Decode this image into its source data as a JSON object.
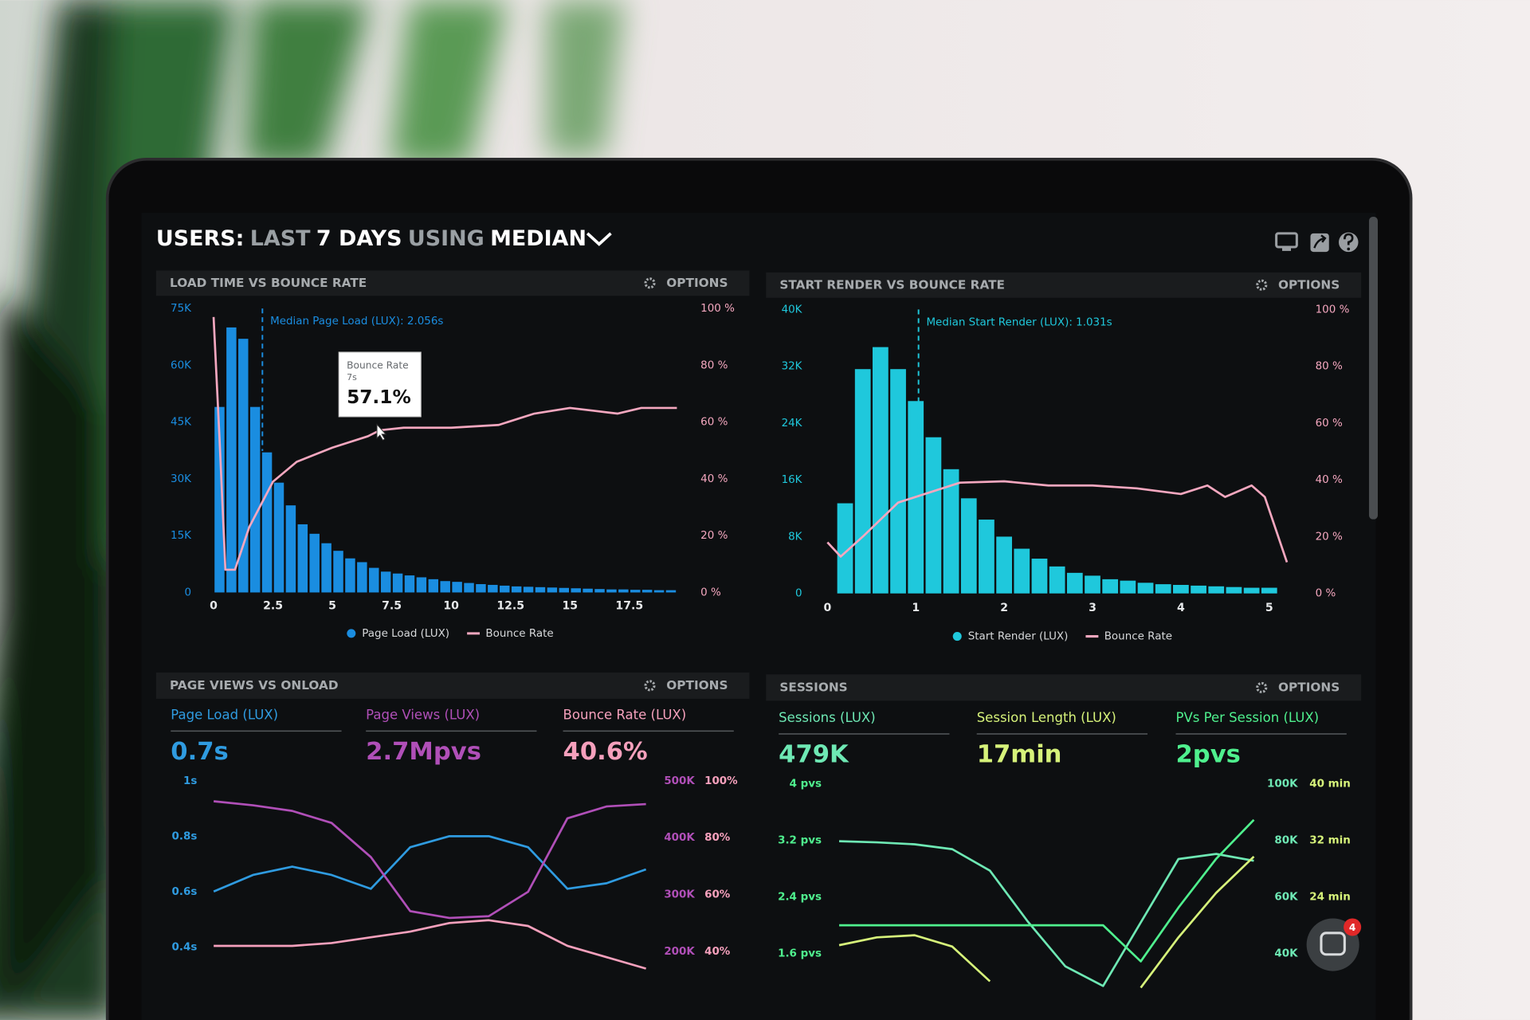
{
  "header": {
    "title": [
      "USERS:",
      "LAST",
      "7 DAYS",
      "USING",
      "MEDIAN"
    ]
  },
  "chat_badge": "4",
  "chart_data": [
    {
      "type": "histogram",
      "title": "LOAD TIME VS BOUNCE RATE",
      "options": "OPTIONS",
      "bins": [
        0,
        0.5,
        1,
        1.5,
        2,
        2.5,
        3,
        3.5,
        4,
        4.5,
        5,
        5.5,
        6,
        6.5,
        7,
        7.5,
        8,
        8.5,
        9,
        9.5,
        10,
        10.5,
        11,
        11.5,
        12,
        12.5,
        13,
        13.5,
        14,
        14.5,
        15,
        15.5,
        16,
        16.5,
        17,
        17.5,
        18,
        18.5,
        19,
        19.5
      ],
      "series": [
        {
          "name": "Page Load (LUX)",
          "color": "#1a8de0",
          "values": [
            49000,
            70000,
            67000,
            49000,
            37000,
            29000,
            23000,
            18000,
            15500,
            13000,
            11000,
            9000,
            8000,
            6500,
            5500,
            5000,
            4500,
            4000,
            3500,
            3000,
            2800,
            2500,
            2200,
            2000,
            1800,
            1600,
            1500,
            1400,
            1300,
            1200,
            1100,
            1000,
            900,
            800,
            800,
            700,
            700,
            600,
            600
          ]
        },
        {
          "name": "Bounce Rate",
          "color": "#f4a7bf",
          "axis": "y2",
          "x": [
            0,
            0.25,
            0.5,
            0.9,
            1.5,
            2.5,
            3.5,
            5,
            6.5,
            7,
            8,
            10,
            12,
            13.5,
            15,
            16,
            17,
            18,
            19.5
          ],
          "values": [
            97,
            54,
            8,
            8,
            23,
            39,
            46,
            51,
            55,
            57.1,
            58,
            58,
            59,
            63,
            65,
            64,
            63,
            65,
            65
          ]
        }
      ],
      "xlim": [
        -0.2,
        19.8
      ],
      "xticks": [
        0,
        2.5,
        5,
        7.5,
        10,
        12.5,
        15,
        17.5
      ],
      "ylim": [
        0,
        75000
      ],
      "yticks": [
        0,
        {
          "value": 15000,
          "label": "15K"
        },
        {
          "value": 30000,
          "label": "30K"
        },
        {
          "value": 45000,
          "label": "45K"
        },
        {
          "value": 60000,
          "label": "60K"
        },
        {
          "value": 75000,
          "label": "75K"
        }
      ],
      "y2lim": [
        0,
        100
      ],
      "y2ticks": [
        {
          "value": 0,
          "label": "0 %"
        },
        {
          "value": 20,
          "label": "20 %"
        },
        {
          "value": 40,
          "label": "40 %"
        },
        {
          "value": 60,
          "label": "60 %"
        },
        {
          "value": 80,
          "label": "80 %"
        },
        {
          "value": 100,
          "label": "100 %"
        }
      ],
      "annotation": {
        "text": "Median Page Load (LUX): 2.056s",
        "x": 2.056
      },
      "tooltip": {
        "title": "Bounce Rate",
        "x": 7,
        "x_label": "7s",
        "value": 57.1,
        "value_label": "57.1%"
      }
    },
    {
      "type": "histogram",
      "title": "START RENDER VS BOUNCE RATE",
      "options": "OPTIONS",
      "bins": [
        0.1,
        0.3,
        0.5,
        0.7,
        0.9,
        1.1,
        1.3,
        1.5,
        1.7,
        1.9,
        2.1,
        2.3,
        2.5,
        2.7,
        2.9,
        3.1,
        3.3,
        3.5,
        3.7,
        3.9,
        4.1,
        4.3,
        4.5,
        4.7,
        4.9,
        5.1
      ],
      "series": [
        {
          "name": "Start Render (LUX)",
          "color": "#1fc8dc",
          "values": [
            12700,
            31600,
            34700,
            31600,
            27100,
            22000,
            17500,
            13400,
            10400,
            8000,
            6300,
            4900,
            3800,
            2900,
            2500,
            2000,
            1800,
            1500,
            1300,
            1200,
            1100,
            1000,
            900,
            800,
            800
          ]
        },
        {
          "name": "Bounce Rate",
          "color": "#f4a7bf",
          "axis": "y2",
          "x": [
            0,
            0.15,
            0.4,
            0.8,
            1.1,
            1.5,
            2,
            2.5,
            3,
            3.5,
            4,
            4.3,
            4.5,
            4.8,
            4.95,
            5.2
          ],
          "values": [
            18,
            13,
            20,
            32,
            35,
            39,
            39.5,
            38,
            38,
            37,
            35,
            38,
            34,
            38,
            34,
            11
          ]
        }
      ],
      "xlim": [
        -0.5,
        5.4
      ],
      "xticks": [
        0,
        1,
        2,
        3,
        4,
        5
      ],
      "ylim": [
        0,
        40000
      ],
      "yticks": [
        0,
        {
          "value": 8000,
          "label": "8K"
        },
        {
          "value": 16000,
          "label": "16K"
        },
        {
          "value": 24000,
          "label": "24K"
        },
        {
          "value": 32000,
          "label": "32K"
        },
        {
          "value": 40000,
          "label": "40K"
        }
      ],
      "y2lim": [
        0,
        100
      ],
      "y2ticks": [
        {
          "value": 0,
          "label": "0 %"
        },
        {
          "value": 20,
          "label": "20 %"
        },
        {
          "value": 40,
          "label": "40 %"
        },
        {
          "value": 60,
          "label": "60 %"
        },
        {
          "value": 80,
          "label": "80 %"
        },
        {
          "value": 100,
          "label": "100 %"
        }
      ],
      "annotation": {
        "text": "Median Start Render (LUX): 1.031s",
        "x": 1.031
      }
    },
    {
      "type": "line",
      "title": "PAGE VIEWS VS ONLOAD",
      "options": "OPTIONS",
      "series": [
        {
          "name": "Page Load (LUX)",
          "stat": "0.7s",
          "color": "#2f9be0",
          "values": [
            0.6,
            0.66,
            0.69,
            0.66,
            0.61,
            0.76,
            0.8,
            0.8,
            0.76,
            0.61,
            0.63,
            0.68
          ]
        },
        {
          "name": "Page Views (LUX)",
          "stat": "2.7Mpvs",
          "color": "#b04fb8",
          "axis": "y2",
          "values": [
            464000,
            457000,
            447000,
            426000,
            366000,
            271000,
            259000,
            262000,
            305000,
            434000,
            455000,
            459000
          ]
        },
        {
          "name": "Bounce Rate (LUX)",
          "stat": "40.6%",
          "color": "#f5a0bc",
          "axis": "y3",
          "values": [
            42,
            42,
            42,
            43,
            45,
            47,
            50,
            51,
            49,
            42,
            38,
            34
          ]
        }
      ],
      "ylim": [
        0.26,
        1
      ],
      "yticks": [
        {
          "value": 1,
          "label": "1s"
        },
        {
          "value": 0.8,
          "label": "0.8s"
        },
        {
          "value": 0.6,
          "label": "0.6s"
        },
        {
          "value": 0.4,
          "label": "0.4s"
        }
      ],
      "y2lim": [
        140000,
        500000
      ],
      "y2ticks": [
        {
          "value": 500000,
          "label": "500K"
        },
        {
          "value": 400000,
          "label": "400K"
        },
        {
          "value": 300000,
          "label": "300K"
        },
        {
          "value": 200000,
          "label": "200K"
        }
      ],
      "y3lim": [
        28,
        100
      ],
      "y3ticks": [
        {
          "value": 100,
          "label": "100%"
        },
        {
          "value": 80,
          "label": "80%"
        },
        {
          "value": 60,
          "label": "60%"
        },
        {
          "value": 40,
          "label": "40%"
        }
      ]
    },
    {
      "type": "line",
      "title": "SESSIONS",
      "options": "OPTIONS",
      "series": [
        {
          "name": "Sessions (LUX)",
          "stat": "479K",
          "color": "#6ee8b4",
          "axis": "y2",
          "values": [
            79700,
            79300,
            78600,
            76900,
            69300,
            51400,
            35500,
            28600,
            51000,
            73400,
            75200,
            72800
          ]
        },
        {
          "name": "Session Length (LUX)",
          "stat": "17min",
          "color": "#d6f27a",
          "axis": "y3",
          "values": [
            17.2,
            18.3,
            18.6,
            17.0,
            12.1,
            null,
            null,
            null,
            11.2,
            18.3,
            24.6,
            29.7
          ]
        },
        {
          "name": "PVs Per Session (LUX)",
          "stat": "2pvs",
          "color": "#4ff08e",
          "values": [
            2.0,
            2.0,
            2.0,
            2.0,
            2.0,
            2.0,
            2.0,
            2.0,
            1.49,
            2.25,
            2.94,
            3.49
          ]
        }
      ],
      "ylim": [
        1.12,
        4
      ],
      "yticks": [
        {
          "value": 4,
          "label": "4 pvs"
        },
        {
          "value": 3.2,
          "label": "3.2 pvs"
        },
        {
          "value": 2.4,
          "label": "2.4 pvs"
        },
        {
          "value": 1.6,
          "label": "1.6 pvs"
        }
      ],
      "y2lim": [
        28000,
        100000
      ],
      "y2ticks": [
        {
          "value": 100000,
          "label": "100K"
        },
        {
          "value": 80000,
          "label": "80K"
        },
        {
          "value": 60000,
          "label": "60K"
        },
        {
          "value": 40000,
          "label": "40K"
        }
      ],
      "y3lim": [
        11.2,
        40
      ],
      "y3ticks": [
        {
          "value": 40,
          "label": "40 min"
        },
        {
          "value": 32,
          "label": "32 min"
        },
        {
          "value": 24,
          "label": "24 min"
        }
      ]
    }
  ]
}
